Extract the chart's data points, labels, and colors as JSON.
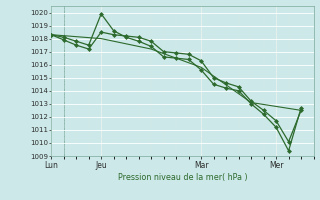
{
  "bg_color": "#cce8e8",
  "grid_color_major": "#b0d4d4",
  "grid_color_minor": "#c0dede",
  "line_color": "#2d6a2d",
  "marker_color": "#2d6a2d",
  "ylabel": "Pression niveau de la mer( hPa )",
  "ylim": [
    1009,
    1020.5
  ],
  "yticks": [
    1009,
    1010,
    1011,
    1012,
    1013,
    1014,
    1015,
    1016,
    1017,
    1018,
    1019,
    1020
  ],
  "xtick_labels": [
    "Lun",
    "Jeu",
    "Mar",
    "Mer"
  ],
  "xtick_positions": [
    0,
    8,
    24,
    36
  ],
  "vline_positions": [
    2,
    8,
    24,
    36
  ],
  "xlim": [
    0,
    42
  ],
  "series": [
    {
      "x": [
        0,
        2,
        4,
        6,
        8,
        10,
        12,
        14,
        16,
        18,
        20,
        22,
        24,
        26,
        28,
        30,
        32,
        34,
        36,
        38,
        40
      ],
      "y": [
        1018.3,
        1018.1,
        1017.8,
        1017.5,
        1019.9,
        1018.6,
        1018.1,
        1017.8,
        1017.4,
        1016.6,
        1016.5,
        1016.4,
        1015.6,
        1014.5,
        1014.2,
        1014.0,
        1013.0,
        1012.2,
        1011.2,
        1009.4,
        1012.7
      ],
      "marker": "D",
      "markersize": 2.0,
      "linewidth": 0.9
    },
    {
      "x": [
        0,
        2,
        4,
        6,
        8,
        10,
        12,
        14,
        16,
        18,
        20,
        22,
        24,
        26,
        28,
        30,
        32,
        34,
        36,
        38,
        40
      ],
      "y": [
        1018.3,
        1017.9,
        1017.5,
        1017.2,
        1018.5,
        1018.3,
        1018.2,
        1018.1,
        1017.8,
        1017.0,
        1016.9,
        1016.8,
        1016.3,
        1015.0,
        1014.6,
        1014.3,
        1013.2,
        1012.5,
        1011.7,
        1010.1,
        1012.5
      ],
      "marker": "D",
      "markersize": 2.0,
      "linewidth": 0.9
    },
    {
      "x": [
        0,
        8,
        16,
        24,
        32,
        40
      ],
      "y": [
        1018.3,
        1018.0,
        1017.2,
        1015.8,
        1013.1,
        1012.5
      ],
      "marker": null,
      "markersize": 0,
      "linewidth": 0.8
    }
  ]
}
